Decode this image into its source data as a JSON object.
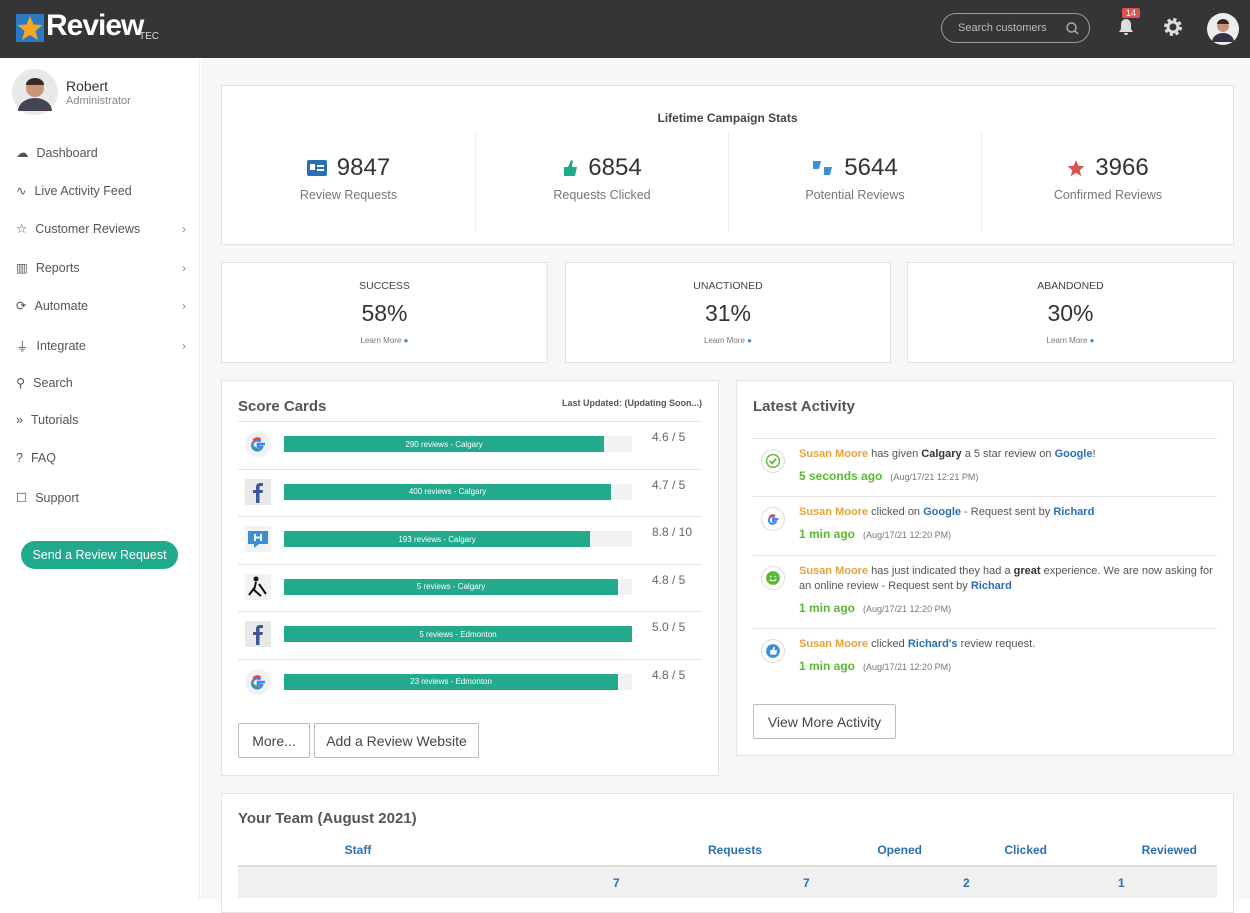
{
  "header": {
    "logo": "Review",
    "logo_suffix": "TEC",
    "search_placeholder": "Search customers",
    "notification_count": 14
  },
  "sidebar": {
    "user_name": "Robert",
    "user_role": "Administrator",
    "nav": [
      "Dashboard",
      "Live Activity Feed",
      "Customer Reviews",
      "Reports",
      "Automate",
      "Integrate",
      "Search",
      "Tutorials",
      "FAQ",
      "Support"
    ],
    "button": "Send a Review Request"
  },
  "stats": {
    "title": "Lifetime Campaign Stats",
    "items": [
      {
        "value": 9847,
        "label": "Review Requests"
      },
      {
        "value": 6854,
        "label": "Requests Clicked"
      },
      {
        "value": 5644,
        "label": "Potential Reviews"
      },
      {
        "value": 3966,
        "label": "Confirmed Reviews"
      }
    ]
  },
  "rates": [
    {
      "label": "SUCCESS",
      "value": "58%",
      "link": "Learn More"
    },
    {
      "label": "UNACTIONED",
      "value": "31%",
      "link": "Learn More"
    },
    {
      "label": "ABANDONED",
      "value": "30%",
      "link": "Learn More"
    }
  ],
  "score_cards": {
    "title": "Score Cards",
    "last_updated": "Last Updated: (Updating Soon...)",
    "rows": [
      {
        "bar_label": "290 reviews - Calgary",
        "score": 4.6,
        "max": 5,
        "score_label": "4.6 / 5"
      },
      {
        "bar_label": "400 reviews - Calgary",
        "score": 4.7,
        "max": 5,
        "score_label": "4.7 / 5"
      },
      {
        "bar_label": "193 reviews - Calgary",
        "score": 8.8,
        "max": 10,
        "score_label": "8.8 / 10"
      },
      {
        "bar_label": "5 reviews - Calgary",
        "score": 4.8,
        "max": 5,
        "score_label": "4.8 / 5"
      },
      {
        "bar_label": "5 reviews - Edmonton",
        "score": 5.0,
        "max": 5,
        "score_label": "5.0 / 5"
      },
      {
        "bar_label": "23 reviews - Edmonton",
        "score": 4.8,
        "max": 5,
        "score_label": "4.8 / 5"
      }
    ],
    "buttons": [
      "More...",
      "Add a Review Website"
    ]
  },
  "activity": {
    "title": "Latest Activity",
    "items": [
      {
        "text": [
          "Susan Moore",
          " has given ",
          "Calgary",
          " a 5 star review on ",
          "Google",
          "!"
        ],
        "time": "5 seconds ago",
        "timestamp": "(Aug/17/21 12:21 PM)"
      },
      {
        "text": [
          "Susan Moore",
          " clicked on ",
          "Google",
          " - Request sent by ",
          "Richard"
        ],
        "time": "1 min ago",
        "timestamp": "(Aug/17/21 12:20 PM)"
      },
      {
        "text": [
          "Susan Moore",
          " has just indicated they had a ",
          "great",
          " experience. We are now asking for an online review - Request sent by ",
          "Richard"
        ],
        "time": "1 min ago",
        "timestamp": "(Aug/17/21 12:20 PM)"
      },
      {
        "text": [
          "Susan Moore",
          " clicked ",
          "Richard's",
          " review request."
        ],
        "time": "1 min ago",
        "timestamp": "(Aug/17/21 12:20 PM)"
      }
    ],
    "button": "View More Activity"
  },
  "team": {
    "title": "Your Team (August 2021)",
    "columns": [
      "Staff",
      "Requests",
      "Opened",
      "Clicked",
      "Reviewed"
    ],
    "rows": [
      [
        null,
        7,
        7,
        2,
        1
      ]
    ]
  }
}
